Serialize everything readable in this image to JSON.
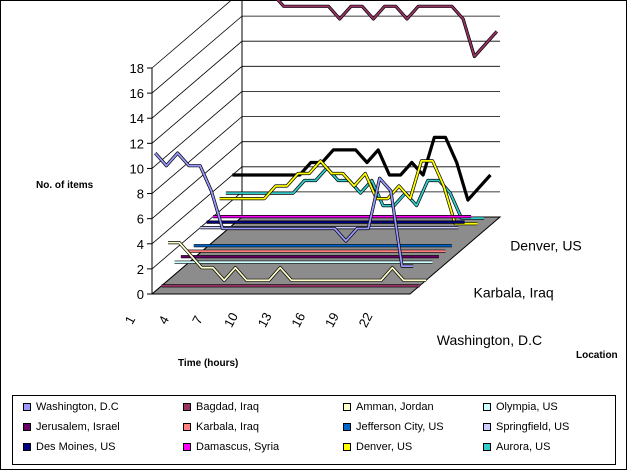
{
  "chart_data": {
    "type": "line",
    "subtype": "3d-line",
    "title": "",
    "ylabel": "No. of items",
    "xlabel": "Time (hours)",
    "zlabel": "Location",
    "ylim": [
      0,
      18
    ],
    "yticks": [
      0,
      2,
      4,
      6,
      8,
      10,
      12,
      14,
      16,
      18
    ],
    "x": [
      1,
      2,
      3,
      4,
      5,
      6,
      7,
      8,
      9,
      10,
      11,
      12,
      13,
      14,
      15,
      16,
      17,
      18,
      19,
      20,
      21,
      22,
      23,
      24
    ],
    "xtick_labels": [
      "1",
      "4",
      "7",
      "10",
      "13",
      "16",
      "19",
      "22"
    ],
    "depth_labels": [
      "Washington, D.C",
      "Karbala, Iraq",
      "Denver, US"
    ],
    "grid": true,
    "legend_position": "bottom",
    "series": [
      {
        "name": "Washington, D.C",
        "color": "#9999ff",
        "values": [
          11,
          10,
          11,
          10,
          10,
          8,
          5,
          5,
          5,
          5,
          5,
          5,
          5,
          5,
          5,
          5,
          5,
          4,
          5,
          5,
          9,
          8,
          2,
          2
        ]
      },
      {
        "name": "Bagdad, Iraq",
        "color": "#993366",
        "values": [
          0,
          0,
          0,
          0,
          0,
          0,
          0,
          0,
          0,
          0,
          0,
          0,
          0,
          0,
          0,
          0,
          0,
          0,
          0,
          0,
          0,
          0,
          0,
          0
        ]
      },
      {
        "name": "Amman, Jordan",
        "color": "#ffffcc",
        "values": [
          3,
          3,
          2,
          1,
          1,
          0,
          1,
          0,
          0,
          0,
          1,
          0,
          0,
          0,
          0,
          0,
          0,
          0,
          0,
          0,
          1,
          0,
          0,
          0
        ]
      },
      {
        "name": "Olympia, US",
        "color": "#ccffff",
        "values": [
          1,
          1,
          1,
          1,
          1,
          1,
          1,
          1,
          1,
          1,
          1,
          1,
          1,
          1,
          1,
          1,
          1,
          1,
          1,
          1,
          1,
          1,
          1,
          1
        ]
      },
      {
        "name": "Jerusalem, Israel",
        "color": "#660066",
        "values": [
          1,
          1,
          1,
          1,
          1,
          1,
          1,
          1,
          1,
          1,
          1,
          1,
          1,
          1,
          1,
          1,
          1,
          1,
          1,
          1,
          1,
          1,
          1,
          1
        ]
      },
      {
        "name": "Karbala, Iraq",
        "color": "#ff8080",
        "values": [
          1,
          1,
          1,
          1,
          1,
          1,
          1,
          1,
          1,
          1,
          1,
          1,
          1,
          1,
          1,
          1,
          1,
          1,
          1,
          1,
          1,
          1,
          1,
          1
        ]
      },
      {
        "name": "Jefferson City, US",
        "color": "#0066cc",
        "values": [
          1,
          1,
          1,
          1,
          1,
          1,
          1,
          1,
          1,
          1,
          1,
          1,
          1,
          1,
          1,
          1,
          1,
          1,
          1,
          1,
          1,
          1,
          1,
          1
        ]
      },
      {
        "name": "Springfield, US",
        "color": "#ccccff",
        "values": [
          2,
          2,
          2,
          2,
          2,
          2,
          2,
          2,
          2,
          2,
          2,
          2,
          2,
          2,
          2,
          2,
          2,
          2,
          2,
          2,
          2,
          2,
          2,
          2
        ]
      },
      {
        "name": "Des Moines, US",
        "color": "#000080",
        "values": [
          2,
          2,
          2,
          2,
          2,
          2,
          2,
          2,
          2,
          2,
          2,
          2,
          2,
          2,
          2,
          2,
          2,
          2,
          2,
          2,
          2,
          2,
          2,
          2
        ]
      },
      {
        "name": "Damascus, Syria",
        "color": "#ff00ff",
        "values": [
          2,
          2,
          2,
          2,
          2,
          2,
          2,
          2,
          2,
          2,
          2,
          2,
          2,
          2,
          2,
          2,
          2,
          2,
          2,
          2,
          2,
          2,
          2,
          2
        ]
      },
      {
        "name": "Denver, US",
        "color": "#ffff00",
        "values": [
          3,
          3,
          3,
          3,
          3,
          4,
          4,
          5,
          5,
          6,
          5,
          5,
          4,
          5,
          3,
          3,
          4,
          3,
          6,
          6,
          4,
          1,
          1,
          1
        ]
      },
      {
        "name": "Aurora, US",
        "color": "#33cccc",
        "values": [
          3,
          3,
          3,
          3,
          3,
          3,
          3,
          4,
          4,
          5,
          4,
          4,
          3,
          4,
          2,
          2,
          3,
          2,
          4,
          4,
          3,
          1,
          1,
          1
        ]
      },
      {
        "name": "",
        "color": "#000000",
        "values": [
          4,
          4,
          4,
          4,
          4,
          4,
          4,
          5,
          5,
          6,
          6,
          6,
          5,
          6,
          4,
          4,
          5,
          4,
          7,
          7,
          5,
          2,
          3,
          4
        ]
      },
      {
        "name": "",
        "color": "#993366",
        "values": [
          18,
          18,
          18,
          18,
          17,
          17,
          17,
          17,
          17,
          16,
          17,
          17,
          16,
          17,
          17,
          16,
          17,
          17,
          17,
          17,
          16,
          13,
          14,
          15
        ]
      }
    ]
  },
  "legend": {
    "items": [
      {
        "label": "Washington, D.C",
        "color": "#9999ff"
      },
      {
        "label": "Bagdad, Iraq",
        "color": "#993366"
      },
      {
        "label": "Amman, Jordan",
        "color": "#ffffcc"
      },
      {
        "label": "Olympia, US",
        "color": "#ccffff"
      },
      {
        "label": "Jerusalem, Israel",
        "color": "#660066"
      },
      {
        "label": "Karbala, Iraq",
        "color": "#ff8080"
      },
      {
        "label": "Jefferson City, US",
        "color": "#0066cc"
      },
      {
        "label": "Springfield, US",
        "color": "#ccccff"
      },
      {
        "label": "Des Moines, US",
        "color": "#000080"
      },
      {
        "label": "Damascus, Syria",
        "color": "#ff00ff"
      },
      {
        "label": "Denver, US",
        "color": "#ffff00"
      },
      {
        "label": "Aurora, US",
        "color": "#33cccc"
      }
    ]
  }
}
